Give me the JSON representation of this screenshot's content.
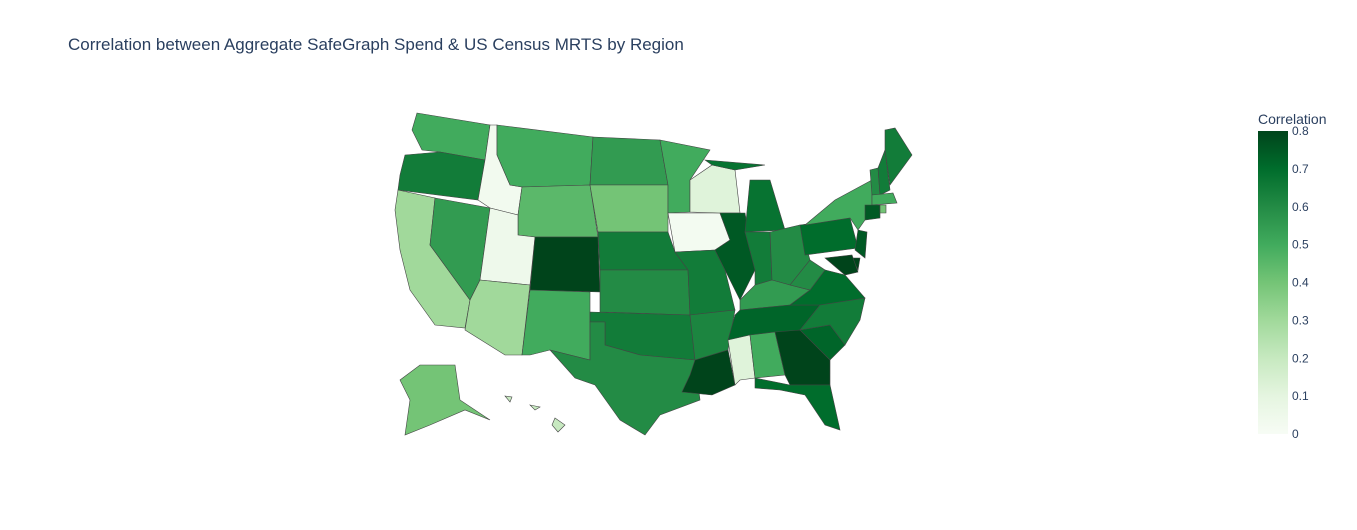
{
  "chart_data": {
    "type": "choropleth",
    "title": "Correlation between Aggregate SafeGraph Spend & US Census MRTS by Region",
    "colorbar_title": "Correlation",
    "values": [
      0.5,
      0.65,
      0.3,
      0.55,
      0.03,
      0.5,
      0.45,
      0.05,
      0.3,
      0.8,
      0.5,
      0.55,
      0.4,
      0.65,
      0.6,
      0.65,
      0.6,
      0.5,
      0.02,
      0.65,
      0.62,
      0.8,
      0.12,
      0.75,
      0.68,
      0.65,
      0.6,
      0.55,
      0.72,
      0.12,
      0.5,
      0.8,
      0.7,
      0.72,
      0.65,
      0.7,
      0.6,
      0.7,
      0.5,
      0.6,
      0.65,
      0.65,
      0.5,
      0.75,
      0.4,
      0.75,
      0.8,
      0.8,
      0.4,
      0.2
    ],
    "zlim": [
      0,
      0.8
    ],
    "zticks": [
      0,
      0.1,
      0.2,
      0.3,
      0.4,
      0.5,
      0.6,
      0.7,
      0.8
    ],
    "colorscale": [
      "#f7fcf5",
      "#e5f5e0",
      "#c7e9c0",
      "#a1d99b",
      "#74c476",
      "#41ab5d",
      "#238b45",
      "#006d2c",
      "#00441b"
    ],
    "border_color": "#444444"
  }
}
